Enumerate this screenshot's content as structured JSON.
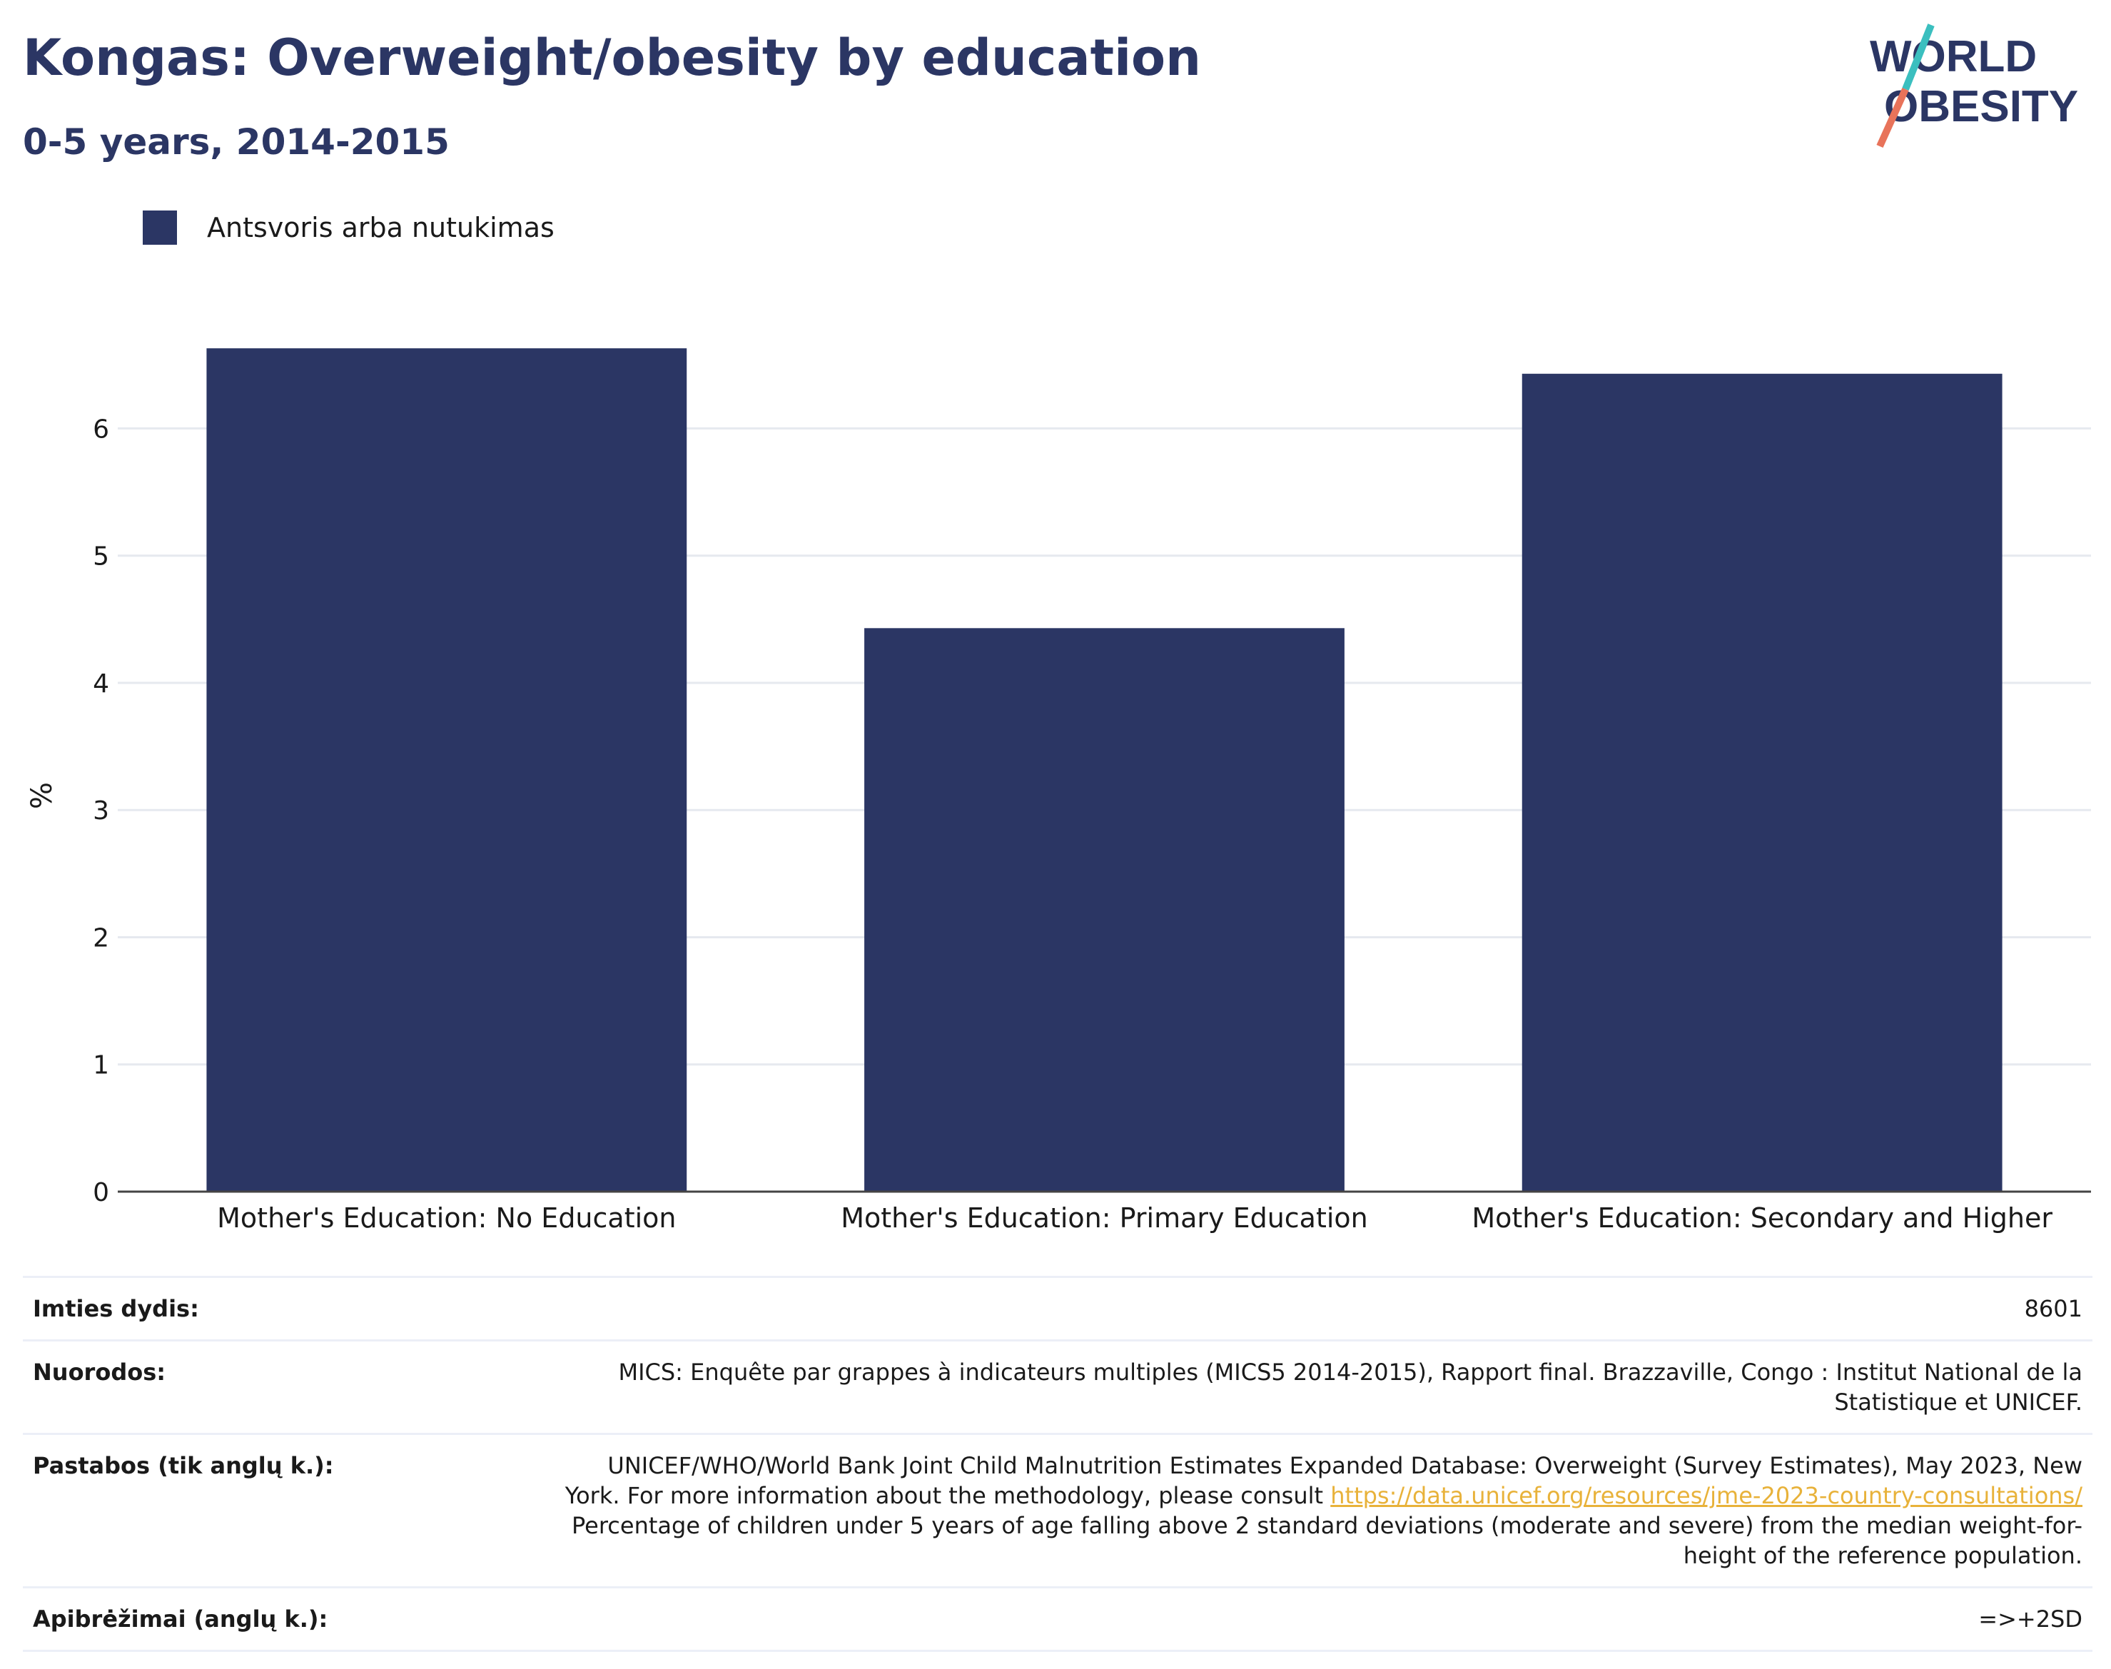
{
  "header": {
    "title": "Kongas: Overweight/obesity by education",
    "subtitle": "0-5 years, 2014-2015"
  },
  "logo": {
    "line1": "WORLD",
    "line2": "OBESITY",
    "colors": {
      "text": "#2b3664",
      "slash_top": "#3bbfbf",
      "slash_bottom": "#e8735a"
    }
  },
  "legend": {
    "label": "Antsvoris arba nutukimas",
    "color": "#2b3664"
  },
  "chart_data": {
    "type": "bar",
    "categories": [
      "Mother's Education: No Education",
      "Mother's Education: Primary Education",
      "Mother's Education: Secondary and Higher"
    ],
    "series": [
      {
        "name": "Antsvoris arba nutukimas",
        "values": [
          6.63,
          4.43,
          6.43
        ],
        "color": "#2b3664"
      }
    ],
    "ylabel": "%",
    "ylim": [
      0,
      6.9
    ],
    "yticks": [
      0,
      1,
      2,
      3,
      4,
      5,
      6
    ],
    "grid": true
  },
  "meta": {
    "sample_label": "Imties dydis:",
    "sample_value": "8601",
    "refs_label": "Nuorodos:",
    "refs_value": "MICS: Enquête par grappes à indicateurs multiples (MICS5 2014-2015), Rapport final. Brazzaville, Congo : Institut National de la Statistique et UNICEF.",
    "notes_label": "Pastabos (tik anglų k.):",
    "notes_part1": "UNICEF/WHO/World Bank Joint Child Malnutrition Estimates Expanded Database: Overweight (Survey Estimates), May 2023, New York. For more information about the methodology, please consult ",
    "notes_link": "https://data.unicef.org/resources/jme-2023-country-consultations/",
    "notes_part2": " Percentage of children under 5 years of age falling above 2 standard deviations (moderate and severe) from the median weight-for-height of the reference population.",
    "defs_label": "Apibrėžimai (anglų k.):",
    "defs_value": "=>+2SD"
  }
}
